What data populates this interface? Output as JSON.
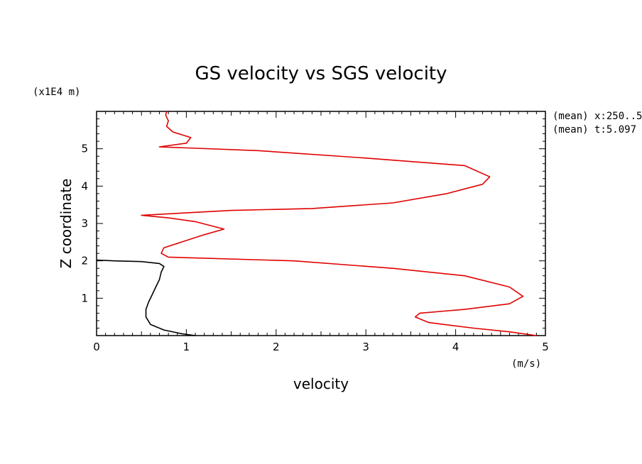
{
  "chart_data": {
    "type": "line",
    "title": "GS velocity vs SGS velocity",
    "xlabel": "velocity",
    "ylabel": "Z coordinate",
    "x_unit": "(m/s)",
    "y_unit": "(x1E4 m)",
    "xlim": [
      0,
      5
    ],
    "ylim": [
      0,
      6
    ],
    "x_ticks": [
      "0",
      "1",
      "2",
      "3",
      "4",
      "5"
    ],
    "y_ticks": [
      "1",
      "2",
      "3",
      "4",
      "5"
    ],
    "annotations": [
      "(mean) x:250..5",
      "(mean) t:5.097"
    ],
    "grid": false,
    "series": [
      {
        "color": "#e00000",
        "points": [
          [
            4.9,
            0.0
          ],
          [
            4.6,
            0.1
          ],
          [
            4.2,
            0.2
          ],
          [
            3.7,
            0.35
          ],
          [
            3.55,
            0.5
          ],
          [
            3.6,
            0.6
          ],
          [
            4.1,
            0.7
          ],
          [
            4.6,
            0.85
          ],
          [
            4.75,
            1.05
          ],
          [
            4.6,
            1.3
          ],
          [
            4.1,
            1.6
          ],
          [
            3.3,
            1.8
          ],
          [
            2.2,
            2.0
          ],
          [
            0.8,
            2.1
          ],
          [
            0.72,
            2.2
          ],
          [
            0.75,
            2.35
          ],
          [
            1.2,
            2.7
          ],
          [
            1.42,
            2.85
          ],
          [
            1.1,
            3.05
          ],
          [
            0.8,
            3.15
          ],
          [
            0.5,
            3.22
          ],
          [
            1.5,
            3.35
          ],
          [
            2.4,
            3.4
          ],
          [
            3.3,
            3.55
          ],
          [
            3.9,
            3.8
          ],
          [
            4.3,
            4.05
          ],
          [
            4.38,
            4.25
          ],
          [
            4.1,
            4.55
          ],
          [
            3.0,
            4.75
          ],
          [
            1.8,
            4.95
          ],
          [
            0.7,
            5.05
          ],
          [
            1.0,
            5.15
          ],
          [
            1.05,
            5.3
          ],
          [
            0.85,
            5.45
          ],
          [
            0.78,
            5.6
          ],
          [
            0.8,
            5.75
          ],
          [
            0.77,
            5.9
          ],
          [
            0.78,
            6.0
          ]
        ]
      },
      {
        "color": "#000000",
        "points": [
          [
            1.1,
            0.0
          ],
          [
            0.95,
            0.05
          ],
          [
            0.75,
            0.15
          ],
          [
            0.6,
            0.3
          ],
          [
            0.55,
            0.5
          ],
          [
            0.55,
            0.7
          ],
          [
            0.58,
            0.9
          ],
          [
            0.62,
            1.1
          ],
          [
            0.66,
            1.3
          ],
          [
            0.7,
            1.5
          ],
          [
            0.72,
            1.7
          ],
          [
            0.75,
            1.85
          ],
          [
            0.7,
            1.93
          ],
          [
            0.5,
            1.98
          ],
          [
            0.2,
            2.0
          ],
          [
            0.0,
            2.02
          ]
        ]
      }
    ]
  }
}
